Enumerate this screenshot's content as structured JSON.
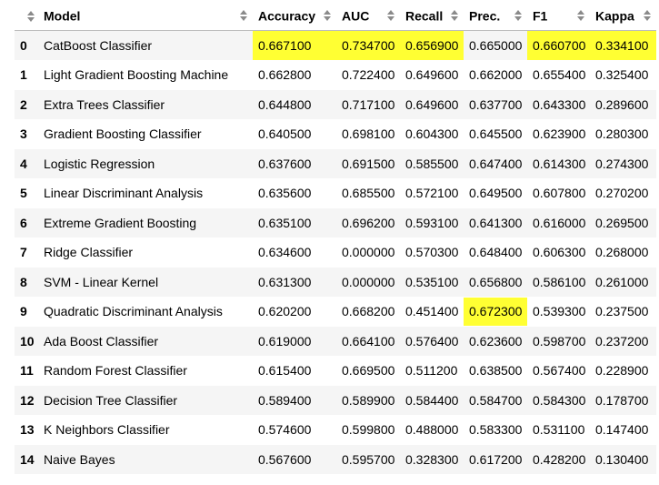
{
  "table": {
    "columns": [
      "",
      "Model",
      "Accuracy",
      "AUC",
      "Recall",
      "Prec.",
      "F1",
      "Kappa"
    ],
    "highlight_color": "#ffff33",
    "rows": [
      {
        "idx": "0",
        "model": "CatBoost Classifier",
        "accuracy": "0.667100",
        "auc": "0.734700",
        "recall": "0.656900",
        "prec": "0.665000",
        "f1": "0.660700",
        "kappa": "0.334100",
        "highlighted": [
          "accuracy",
          "auc",
          "recall",
          "f1",
          "kappa"
        ]
      },
      {
        "idx": "1",
        "model": "Light Gradient Boosting Machine",
        "accuracy": "0.662800",
        "auc": "0.722400",
        "recall": "0.649600",
        "prec": "0.662000",
        "f1": "0.655400",
        "kappa": "0.325400",
        "highlighted": []
      },
      {
        "idx": "2",
        "model": "Extra Trees Classifier",
        "accuracy": "0.644800",
        "auc": "0.717100",
        "recall": "0.649600",
        "prec": "0.637700",
        "f1": "0.643300",
        "kappa": "0.289600",
        "highlighted": []
      },
      {
        "idx": "3",
        "model": "Gradient Boosting Classifier",
        "accuracy": "0.640500",
        "auc": "0.698100",
        "recall": "0.604300",
        "prec": "0.645500",
        "f1": "0.623900",
        "kappa": "0.280300",
        "highlighted": []
      },
      {
        "idx": "4",
        "model": "Logistic Regression",
        "accuracy": "0.637600",
        "auc": "0.691500",
        "recall": "0.585500",
        "prec": "0.647400",
        "f1": "0.614300",
        "kappa": "0.274300",
        "highlighted": []
      },
      {
        "idx": "5",
        "model": "Linear Discriminant Analysis",
        "accuracy": "0.635600",
        "auc": "0.685500",
        "recall": "0.572100",
        "prec": "0.649500",
        "f1": "0.607800",
        "kappa": "0.270200",
        "highlighted": []
      },
      {
        "idx": "6",
        "model": "Extreme Gradient Boosting",
        "accuracy": "0.635100",
        "auc": "0.696200",
        "recall": "0.593100",
        "prec": "0.641300",
        "f1": "0.616000",
        "kappa": "0.269500",
        "highlighted": []
      },
      {
        "idx": "7",
        "model": "Ridge Classifier",
        "accuracy": "0.634600",
        "auc": "0.000000",
        "recall": "0.570300",
        "prec": "0.648400",
        "f1": "0.606300",
        "kappa": "0.268000",
        "highlighted": []
      },
      {
        "idx": "8",
        "model": "SVM - Linear Kernel",
        "accuracy": "0.631300",
        "auc": "0.000000",
        "recall": "0.535100",
        "prec": "0.656800",
        "f1": "0.586100",
        "kappa": "0.261000",
        "highlighted": []
      },
      {
        "idx": "9",
        "model": "Quadratic Discriminant Analysis",
        "accuracy": "0.620200",
        "auc": "0.668200",
        "recall": "0.451400",
        "prec": "0.672300",
        "f1": "0.539300",
        "kappa": "0.237500",
        "highlighted": [
          "prec"
        ]
      },
      {
        "idx": "10",
        "model": "Ada Boost Classifier",
        "accuracy": "0.619000",
        "auc": "0.664100",
        "recall": "0.576400",
        "prec": "0.623600",
        "f1": "0.598700",
        "kappa": "0.237200",
        "highlighted": []
      },
      {
        "idx": "11",
        "model": "Random Forest Classifier",
        "accuracy": "0.615400",
        "auc": "0.669500",
        "recall": "0.511200",
        "prec": "0.638500",
        "f1": "0.567400",
        "kappa": "0.228900",
        "highlighted": []
      },
      {
        "idx": "12",
        "model": "Decision Tree Classifier",
        "accuracy": "0.589400",
        "auc": "0.589900",
        "recall": "0.584400",
        "prec": "0.584700",
        "f1": "0.584300",
        "kappa": "0.178700",
        "highlighted": []
      },
      {
        "idx": "13",
        "model": "K Neighbors Classifier",
        "accuracy": "0.574600",
        "auc": "0.599800",
        "recall": "0.488000",
        "prec": "0.583300",
        "f1": "0.531100",
        "kappa": "0.147400",
        "highlighted": []
      },
      {
        "idx": "14",
        "model": "Naive Bayes",
        "accuracy": "0.567600",
        "auc": "0.595700",
        "recall": "0.328300",
        "prec": "0.617200",
        "f1": "0.428200",
        "kappa": "0.130400",
        "highlighted": []
      }
    ]
  }
}
